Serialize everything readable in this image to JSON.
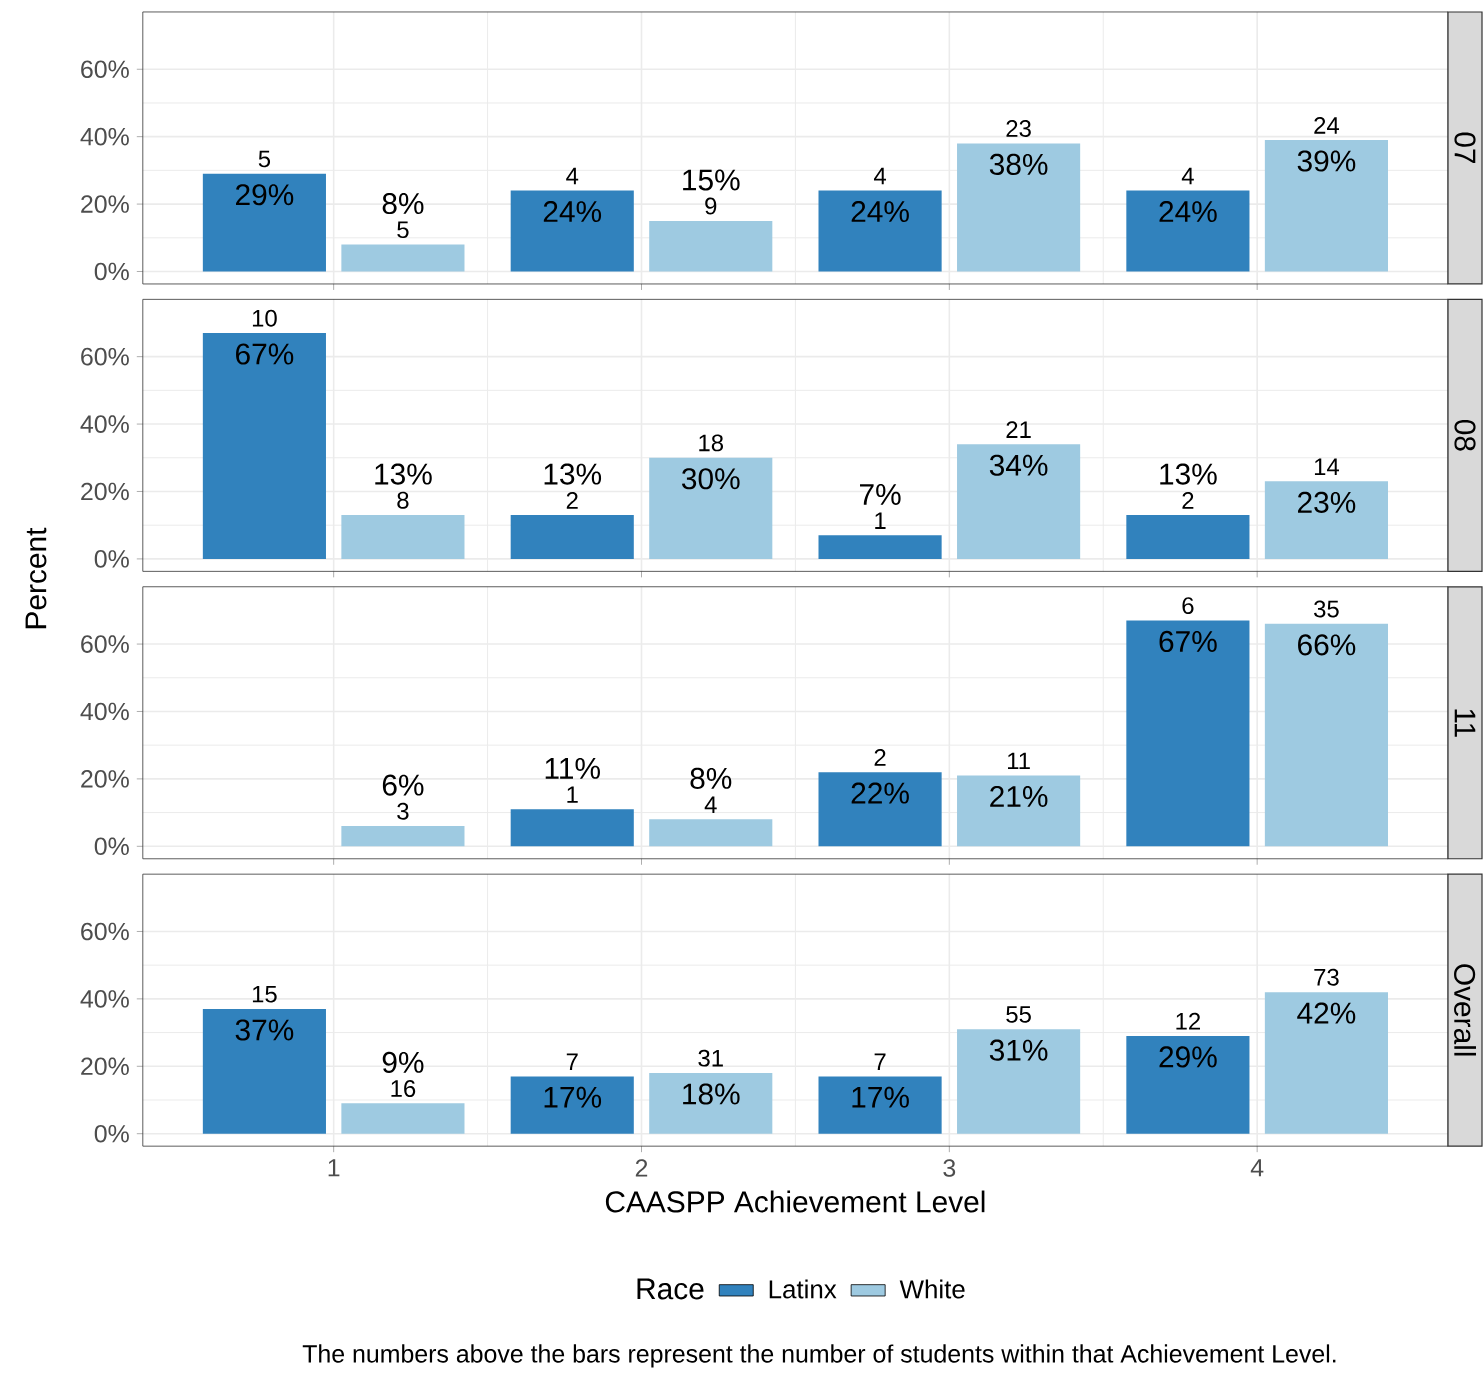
{
  "chart_data": [
    {
      "type": "bar",
      "title": "07",
      "categories": [
        "1",
        "2",
        "3",
        "4"
      ],
      "tick_labels": "y",
      "grid": true,
      "legend": "bottom",
      "ylim": [
        -3.7,
        77
      ],
      "yticks": [
        {
          "value": 0,
          "label": "0%"
        },
        {
          "value": 20,
          "label": "20%"
        },
        {
          "value": 40,
          "label": "40%"
        },
        {
          "value": 60,
          "label": "60%"
        }
      ],
      "series": [
        {
          "name": "Latinx",
          "color": "#3182bd",
          "values": [
            29,
            24,
            24,
            24
          ],
          "value_labels": [
            "29%",
            "24%",
            "24%",
            "24%"
          ]
        },
        {
          "name": "White",
          "color": "#9ecae1",
          "values": [
            8,
            15,
            38,
            39
          ],
          "value_labels": [
            "8%",
            "15%",
            "38%",
            "39%"
          ]
        }
      ],
      "annotations": [
        {
          "text": "5",
          "x": "1",
          "y": 29
        },
        {
          "text": "5",
          "x": "1",
          "y": 8
        },
        {
          "text": "4",
          "x": "2",
          "y": 24
        },
        {
          "text": "9",
          "x": "2",
          "y": 15
        },
        {
          "text": "4",
          "x": "3",
          "y": 24
        },
        {
          "text": "23",
          "x": "3",
          "y": 38
        },
        {
          "text": "4",
          "x": "4",
          "y": 24
        },
        {
          "text": "24",
          "x": "4",
          "y": 39
        }
      ]
    },
    {
      "type": "bar",
      "title": "08",
      "categories": [
        "1",
        "2",
        "3",
        "4"
      ],
      "tick_labels": "y",
      "grid": true,
      "legend": "bottom",
      "ylim": [
        -3.7,
        77
      ],
      "yticks": [
        {
          "value": 0,
          "label": "0%"
        },
        {
          "value": 20,
          "label": "20%"
        },
        {
          "value": 40,
          "label": "40%"
        },
        {
          "value": 60,
          "label": "60%"
        }
      ],
      "series": [
        {
          "name": "Latinx",
          "color": "#3182bd",
          "values": [
            67,
            13,
            7,
            13
          ],
          "value_labels": [
            "67%",
            "13%",
            "7%",
            "13%"
          ]
        },
        {
          "name": "White",
          "color": "#9ecae1",
          "values": [
            13,
            30,
            34,
            23
          ],
          "value_labels": [
            "13%",
            "30%",
            "34%",
            "23%"
          ]
        }
      ],
      "annotations": [
        {
          "text": "10",
          "x": "1",
          "y": 67
        },
        {
          "text": "8",
          "x": "1",
          "y": 13
        },
        {
          "text": "2",
          "x": "2",
          "y": 13
        },
        {
          "text": "18",
          "x": "2",
          "y": 30
        },
        {
          "text": "1",
          "x": "3",
          "y": 7
        },
        {
          "text": "21",
          "x": "3",
          "y": 34
        },
        {
          "text": "2",
          "x": "4",
          "y": 13
        },
        {
          "text": "14",
          "x": "4",
          "y": 23
        }
      ]
    },
    {
      "type": "bar",
      "title": "11",
      "categories": [
        "1",
        "2",
        "3",
        "4"
      ],
      "tick_labels": "y",
      "grid": true,
      "legend": "bottom",
      "ylabel": "Percent",
      "ylim": [
        -3.7,
        77
      ],
      "yticks": [
        {
          "value": 0,
          "label": "0%"
        },
        {
          "value": 20,
          "label": "20%"
        },
        {
          "value": 40,
          "label": "40%"
        },
        {
          "value": 60,
          "label": "60%"
        }
      ],
      "series": [
        {
          "name": "Latinx",
          "color": "#3182bd",
          "values": [
            null,
            11,
            22,
            67
          ],
          "value_labels": [
            null,
            "11%",
            "22%",
            "67%"
          ]
        },
        {
          "name": "White",
          "color": "#9ecae1",
          "values": [
            6,
            8,
            21,
            66
          ],
          "value_labels": [
            "6%",
            "8%",
            "21%",
            "66%"
          ]
        }
      ],
      "annotations": [
        {
          "text": "3",
          "x": "1",
          "y": 6
        },
        {
          "text": "1",
          "x": "2",
          "y": 11
        },
        {
          "text": "4",
          "x": "2",
          "y": 8
        },
        {
          "text": "2",
          "x": "3",
          "y": 22
        },
        {
          "text": "11",
          "x": "3",
          "y": 21
        },
        {
          "text": "6",
          "x": "4",
          "y": 67
        },
        {
          "text": "35",
          "x": "4",
          "y": 66
        }
      ]
    },
    {
      "type": "bar",
      "title": "Overall",
      "categories": [
        "1",
        "2",
        "3",
        "4"
      ],
      "grid": true,
      "legend": "bottom",
      "legend_title": "Race",
      "xlabel": "CAASPP Achievement Level",
      "ylim": [
        -3.7,
        77
      ],
      "yticks": [
        {
          "value": 0,
          "label": "0%"
        },
        {
          "value": 20,
          "label": "20%"
        },
        {
          "value": 40,
          "label": "40%"
        },
        {
          "value": 60,
          "label": "60%"
        }
      ],
      "series": [
        {
          "name": "Latinx",
          "color": "#3182bd",
          "values": [
            37,
            17,
            17,
            29
          ],
          "value_labels": [
            "37%",
            "17%",
            "17%",
            "29%"
          ]
        },
        {
          "name": "White",
          "color": "#9ecae1",
          "values": [
            9,
            18,
            31,
            42
          ],
          "value_labels": [
            "9%",
            "18%",
            "31%",
            "42%"
          ]
        }
      ],
      "annotations": [
        {
          "text": "15",
          "x": "1",
          "y": 37
        },
        {
          "text": "16",
          "x": "1",
          "y": 9
        },
        {
          "text": "7",
          "x": "2",
          "y": 17
        },
        {
          "text": "31",
          "x": "2",
          "y": 18
        },
        {
          "text": "7",
          "x": "3",
          "y": 17
        },
        {
          "text": "55",
          "x": "3",
          "y": 31
        },
        {
          "text": "12",
          "x": "4",
          "y": 29
        },
        {
          "text": "73",
          "x": "4",
          "y": 42
        },
        "The numbers above the bars represent the number of students within that Achievement Level."
      ]
    }
  ]
}
